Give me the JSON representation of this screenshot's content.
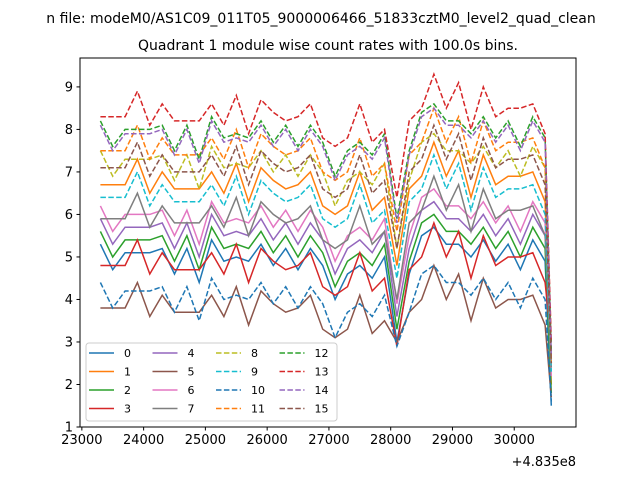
{
  "chart_data": {
    "type": "line",
    "suptitle": "n file: modeM0/AS1C09_011T05_9000006466_51833cztM0_level2_quad_clean",
    "title": "Quadrant 1 module wise count rates with 100.0s bins.",
    "xlabel": "",
    "ylabel": "",
    "x_offset_label": "+4.835e8",
    "xlim": [
      22970,
      31000
    ],
    "ylim": [
      1,
      9.68
    ],
    "xticks": [
      23000,
      24000,
      25000,
      26000,
      27000,
      28000,
      29000,
      30000
    ],
    "yticks": [
      1,
      2,
      3,
      4,
      5,
      6,
      7,
      8,
      9
    ],
    "grid": false,
    "legend_placement": "lower-left",
    "x": [
      23300,
      23500,
      23700,
      23900,
      24100,
      24300,
      24500,
      24700,
      24900,
      25100,
      25300,
      25500,
      25700,
      25900,
      26100,
      26300,
      26500,
      26700,
      26900,
      27100,
      27300,
      27500,
      27700,
      27900,
      28100,
      28300,
      28500,
      28700,
      28900,
      29100,
      29300,
      29500,
      29700,
      29900,
      30100,
      30300,
      30500,
      30600
    ],
    "series": [
      {
        "name": "0",
        "color": "#1f77b4",
        "dashed": false,
        "values": [
          5.3,
          4.7,
          5.1,
          5.1,
          5.1,
          5.2,
          4.6,
          5.2,
          4.4,
          5.4,
          4.9,
          5.0,
          4.9,
          5.3,
          4.8,
          5.2,
          4.7,
          5.2,
          4.8,
          4.0,
          4.6,
          4.8,
          4.5,
          5.0,
          3.0,
          4.6,
          5.5,
          5.7,
          5.3,
          5.3,
          5.0,
          5.4,
          4.9,
          5.3,
          4.7,
          5.4,
          4.9,
          1.5
        ]
      },
      {
        "name": "1",
        "color": "#ff7f0e",
        "dashed": false,
        "values": [
          6.7,
          6.7,
          6.7,
          7.3,
          6.5,
          7.0,
          6.6,
          6.6,
          6.6,
          7.0,
          6.5,
          7.2,
          6.3,
          7.1,
          6.8,
          6.6,
          6.7,
          7.0,
          6.2,
          6.0,
          6.2,
          7.0,
          6.1,
          6.4,
          4.8,
          6.6,
          6.9,
          7.7,
          6.9,
          7.5,
          6.4,
          7.4,
          6.7,
          6.9,
          6.9,
          7.0,
          6.3,
          2.0
        ]
      },
      {
        "name": "2",
        "color": "#2ca02c",
        "dashed": false,
        "values": [
          5.6,
          5.0,
          5.4,
          5.4,
          5.4,
          5.5,
          4.9,
          5.5,
          4.7,
          5.7,
          5.2,
          5.3,
          5.2,
          5.6,
          5.1,
          5.5,
          5.0,
          5.5,
          5.1,
          4.3,
          4.9,
          5.1,
          4.8,
          5.3,
          3.3,
          4.9,
          5.8,
          6.0,
          5.6,
          5.6,
          5.3,
          5.7,
          5.2,
          5.6,
          5.0,
          5.7,
          5.2,
          1.8
        ]
      },
      {
        "name": "3",
        "color": "#d62728",
        "dashed": false,
        "values": [
          4.8,
          4.8,
          4.8,
          5.4,
          4.6,
          5.1,
          4.7,
          4.7,
          4.7,
          5.1,
          4.6,
          5.3,
          4.4,
          5.2,
          4.9,
          4.7,
          4.8,
          5.1,
          4.3,
          4.1,
          4.3,
          5.1,
          4.2,
          4.5,
          2.9,
          4.7,
          5.0,
          5.8,
          5.0,
          5.6,
          4.5,
          5.5,
          4.8,
          5.0,
          5.0,
          5.1,
          4.4,
          3.0
        ]
      },
      {
        "name": "4",
        "color": "#9467bd",
        "dashed": false,
        "values": [
          5.9,
          5.3,
          5.7,
          5.7,
          5.7,
          5.8,
          5.2,
          5.8,
          5.0,
          6.0,
          5.5,
          5.6,
          5.5,
          5.9,
          5.4,
          5.8,
          5.3,
          5.8,
          5.4,
          4.6,
          5.2,
          5.4,
          5.1,
          5.6,
          3.6,
          5.2,
          6.1,
          6.3,
          5.9,
          5.9,
          5.6,
          6.0,
          5.5,
          5.9,
          5.3,
          6.0,
          5.5,
          2.5
        ]
      },
      {
        "name": "5",
        "color": "#8c564b",
        "dashed": false,
        "values": [
          3.8,
          3.8,
          3.8,
          4.4,
          3.6,
          4.1,
          3.7,
          3.7,
          3.7,
          4.1,
          3.6,
          4.3,
          3.4,
          4.2,
          3.9,
          3.7,
          3.8,
          4.1,
          3.3,
          3.1,
          3.3,
          4.1,
          3.2,
          3.5,
          3.0,
          3.7,
          4.0,
          4.8,
          4.0,
          4.6,
          3.5,
          4.5,
          3.8,
          4.0,
          4.0,
          4.1,
          3.4,
          1.7
        ]
      },
      {
        "name": "6",
        "color": "#e377c2",
        "dashed": false,
        "values": [
          6.2,
          5.6,
          6.0,
          6.0,
          6.0,
          6.1,
          5.5,
          6.1,
          5.3,
          6.3,
          5.8,
          5.9,
          5.8,
          6.2,
          5.7,
          6.1,
          5.6,
          6.1,
          5.7,
          4.9,
          5.5,
          5.7,
          5.4,
          5.9,
          3.9,
          5.5,
          6.4,
          6.6,
          6.2,
          6.2,
          5.9,
          6.3,
          5.8,
          6.2,
          5.6,
          6.3,
          5.8,
          2.2
        ]
      },
      {
        "name": "7",
        "color": "#7f7f7f",
        "dashed": false,
        "values": [
          5.9,
          5.9,
          5.9,
          6.5,
          5.7,
          6.2,
          5.8,
          5.8,
          5.8,
          6.2,
          5.7,
          6.4,
          5.5,
          6.3,
          6.0,
          5.8,
          5.9,
          6.2,
          5.4,
          5.2,
          5.4,
          6.2,
          5.3,
          5.6,
          4.0,
          5.8,
          6.1,
          6.9,
          6.1,
          6.7,
          5.6,
          6.6,
          5.9,
          6.1,
          6.1,
          6.2,
          5.5,
          2.4
        ]
      },
      {
        "name": "8",
        "color": "#bcbd22",
        "dashed": true,
        "values": [
          7.5,
          6.9,
          7.3,
          7.3,
          7.3,
          7.4,
          6.8,
          7.4,
          6.6,
          7.6,
          7.1,
          7.2,
          7.1,
          7.5,
          7.0,
          7.4,
          6.9,
          7.4,
          7.0,
          6.2,
          6.8,
          7.0,
          6.7,
          7.2,
          5.2,
          6.8,
          7.7,
          7.9,
          7.5,
          7.5,
          7.2,
          7.6,
          7.1,
          7.5,
          6.9,
          7.6,
          7.1,
          2.6
        ]
      },
      {
        "name": "9",
        "color": "#17becf",
        "dashed": true,
        "values": [
          6.4,
          6.4,
          6.4,
          7.0,
          6.2,
          6.7,
          6.3,
          6.3,
          6.3,
          6.7,
          6.2,
          6.9,
          6.0,
          6.8,
          6.5,
          6.3,
          6.4,
          6.7,
          5.9,
          5.7,
          5.9,
          6.7,
          5.8,
          6.1,
          4.5,
          6.3,
          6.6,
          7.4,
          6.6,
          7.2,
          6.1,
          7.1,
          6.4,
          6.6,
          6.6,
          6.7,
          6.0,
          2.3
        ]
      },
      {
        "name": "10",
        "color": "#1f77b4",
        "dashed": true,
        "values": [
          4.4,
          3.8,
          4.2,
          4.2,
          4.2,
          4.3,
          3.7,
          4.3,
          3.5,
          4.5,
          4.0,
          4.1,
          4.0,
          4.4,
          3.9,
          4.3,
          3.8,
          4.3,
          3.9,
          3.1,
          3.7,
          3.9,
          3.6,
          4.1,
          2.9,
          3.7,
          4.6,
          4.8,
          4.4,
          4.4,
          4.1,
          4.5,
          4.0,
          4.4,
          3.8,
          4.5,
          4.0,
          1.6
        ]
      },
      {
        "name": "11",
        "color": "#ff7f0e",
        "dashed": true,
        "values": [
          7.5,
          7.5,
          7.5,
          8.1,
          7.3,
          7.8,
          7.4,
          7.4,
          7.4,
          7.8,
          7.3,
          8.0,
          7.1,
          7.9,
          7.6,
          7.4,
          7.5,
          7.8,
          7.0,
          6.8,
          7.0,
          7.8,
          6.9,
          7.2,
          5.6,
          7.4,
          7.7,
          8.5,
          7.7,
          8.3,
          7.2,
          8.2,
          7.5,
          7.7,
          7.7,
          7.8,
          7.1,
          2.5
        ]
      },
      {
        "name": "12",
        "color": "#2ca02c",
        "dashed": true,
        "values": [
          8.2,
          7.6,
          8.0,
          8.0,
          8.0,
          8.1,
          7.5,
          8.1,
          7.3,
          8.3,
          7.8,
          7.9,
          7.8,
          8.2,
          7.7,
          8.1,
          7.6,
          8.1,
          7.7,
          6.9,
          7.5,
          7.7,
          7.4,
          7.9,
          5.9,
          7.5,
          8.4,
          8.6,
          8.2,
          8.2,
          7.9,
          8.3,
          7.8,
          8.2,
          7.6,
          8.3,
          7.8,
          2.8
        ]
      },
      {
        "name": "13",
        "color": "#d62728",
        "dashed": true,
        "values": [
          8.3,
          8.3,
          8.3,
          8.9,
          8.1,
          8.6,
          8.2,
          8.2,
          8.2,
          8.6,
          8.1,
          8.8,
          7.9,
          8.7,
          8.4,
          8.2,
          8.3,
          8.6,
          7.8,
          7.6,
          7.8,
          8.6,
          7.7,
          8.0,
          6.4,
          8.2,
          8.5,
          9.3,
          8.5,
          9.1,
          8.0,
          9.0,
          8.3,
          8.5,
          8.5,
          8.6,
          7.9,
          3.0
        ]
      },
      {
        "name": "14",
        "color": "#9467bd",
        "dashed": true,
        "values": [
          8.1,
          7.5,
          7.9,
          7.9,
          7.9,
          8.0,
          7.4,
          8.0,
          7.2,
          8.2,
          7.7,
          7.8,
          7.7,
          8.1,
          7.6,
          8.0,
          7.5,
          8.0,
          7.6,
          6.8,
          7.4,
          7.6,
          7.3,
          7.8,
          5.8,
          7.4,
          8.3,
          8.5,
          8.1,
          8.1,
          7.8,
          8.2,
          7.7,
          8.1,
          7.5,
          8.2,
          7.7,
          2.7
        ]
      },
      {
        "name": "15",
        "color": "#8c564b",
        "dashed": true,
        "values": [
          7.1,
          7.1,
          7.1,
          7.7,
          6.9,
          7.4,
          7.0,
          7.0,
          7.0,
          7.4,
          6.9,
          7.6,
          6.7,
          7.5,
          7.2,
          7.0,
          7.1,
          7.4,
          6.6,
          6.4,
          6.6,
          7.4,
          6.5,
          6.8,
          5.2,
          7.0,
          7.3,
          8.1,
          7.3,
          7.9,
          6.8,
          7.8,
          7.1,
          7.3,
          7.3,
          7.4,
          6.7,
          2.5
        ]
      }
    ]
  }
}
